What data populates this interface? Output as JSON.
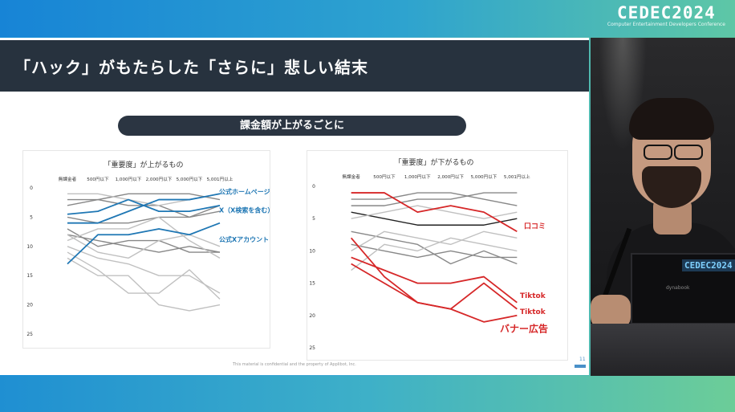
{
  "header": {
    "logo": "CEDEC2024",
    "logo_sub": "Computer Entertainment Developers Conference"
  },
  "slide": {
    "title": "「ハック」がもたらした「さらに」悲しい結末",
    "subtitle": "課金額が上がるごとに",
    "footer": "This material is confidential and the property of Applibot, Inc.",
    "page": "11",
    "colors": {
      "accent_blue": "#1f77b4",
      "accent_red": "#d62728",
      "dark": "#27323e"
    }
  },
  "video": {
    "laptop_logo": "CEDEC2024",
    "laptop_brand": "dynabook"
  },
  "chart_data": [
    {
      "type": "line",
      "title": "「重要度」が上がるもの",
      "categories": [
        "無課金者",
        "500円以下",
        "1,000円以下",
        "2,000円以下",
        "5,000円以下",
        "5,001円以上"
      ],
      "ylim": [
        25,
        0
      ],
      "yticks": [
        0,
        5,
        10,
        15,
        20,
        25
      ],
      "series": [
        {
          "name": "公式ホームページ",
          "color": "#1f77b4",
          "highlight": true,
          "values": [
            6,
            6,
            4,
            2,
            2,
            1
          ]
        },
        {
          "name": "X（X検索を含む）",
          "color": "#1f77b4",
          "highlight": true,
          "values": [
            4.5,
            4,
            2,
            4,
            4,
            3
          ]
        },
        {
          "name": "公式Xアカウント",
          "color": "#1f77b4",
          "highlight": true,
          "values": [
            13,
            8,
            8,
            7,
            8,
            6
          ]
        },
        {
          "name": "",
          "color": "#888888",
          "values": [
            2,
            2,
            1,
            1,
            1,
            2
          ]
        },
        {
          "name": "",
          "color": "#888888",
          "values": [
            3,
            2,
            3,
            3,
            5,
            4
          ]
        },
        {
          "name": "",
          "color": "#888888",
          "values": [
            5,
            6,
            6,
            5,
            5,
            3
          ]
        },
        {
          "name": "",
          "color": "#888888",
          "values": [
            7,
            10,
            9,
            9,
            11,
            11
          ]
        },
        {
          "name": "",
          "color": "#888888",
          "values": [
            8,
            9,
            10,
            11,
            10,
            11
          ]
        },
        {
          "name": "",
          "color": "#c0c0c0",
          "values": [
            1,
            1,
            2,
            3,
            2,
            1
          ]
        },
        {
          "name": "",
          "color": "#c0c0c0",
          "values": [
            9,
            7,
            7,
            5,
            9,
            12
          ]
        },
        {
          "name": "",
          "color": "#c0c0c0",
          "values": [
            10,
            12,
            13,
            15,
            15,
            18
          ]
        },
        {
          "name": "",
          "color": "#c0c0c0",
          "values": [
            11,
            14,
            18,
            18,
            14,
            19
          ]
        },
        {
          "name": "",
          "color": "#c0c0c0",
          "values": [
            12,
            15,
            15,
            20,
            21,
            20
          ]
        },
        {
          "name": "",
          "color": "#c0c0c0",
          "values": [
            8,
            11,
            12,
            9,
            8,
            10
          ]
        }
      ],
      "annotations": [
        "公式ホームページ",
        "X（X検索を含む）",
        "公式Xアカウント"
      ]
    },
    {
      "type": "line",
      "title": "「重要度」が下がるもの",
      "categories": [
        "無課金者",
        "500円以下",
        "1,000円以下",
        "2,000円以下",
        "5,000円以下",
        "5,001円以上"
      ],
      "ylim": [
        25,
        0
      ],
      "yticks": [
        0,
        5,
        10,
        15,
        20,
        25
      ],
      "series": [
        {
          "name": "口コミ",
          "color": "#d62728",
          "highlight": true,
          "values": [
            1,
            1,
            4,
            3,
            4,
            7
          ]
        },
        {
          "name": "Tiktok",
          "color": "#d62728",
          "highlight": true,
          "values": [
            11,
            13,
            15,
            15,
            14,
            18
          ]
        },
        {
          "name": "Tiktok",
          "color": "#d62728",
          "highlight": true,
          "values": [
            12,
            15,
            18,
            19,
            15,
            19
          ]
        },
        {
          "name": "バナー広告",
          "color": "#d62728",
          "highlight": true,
          "values": [
            8,
            14,
            18,
            19,
            21,
            20
          ]
        },
        {
          "name": "",
          "color": "#222222",
          "values": [
            4,
            5,
            6,
            6,
            6,
            5
          ]
        },
        {
          "name": "",
          "color": "#888888",
          "values": [
            2,
            2,
            1,
            1,
            2,
            3
          ]
        },
        {
          "name": "",
          "color": "#888888",
          "values": [
            3,
            3,
            2,
            2,
            1,
            1
          ]
        },
        {
          "name": "",
          "color": "#888888",
          "values": [
            9,
            10,
            11,
            10,
            11,
            11
          ]
        },
        {
          "name": "",
          "color": "#888888",
          "values": [
            7,
            8,
            9,
            12,
            10,
            12
          ]
        },
        {
          "name": "",
          "color": "#c0c0c0",
          "values": [
            5,
            4,
            3,
            4,
            5,
            4
          ]
        },
        {
          "name": "",
          "color": "#c0c0c0",
          "values": [
            10,
            7,
            8,
            9,
            7,
            8
          ]
        },
        {
          "name": "",
          "color": "#c0c0c0",
          "values": [
            13,
            9,
            10,
            8,
            9,
            10
          ]
        }
      ],
      "annotations": [
        "口コミ",
        "Tiktok",
        "Tiktok",
        "バナー広告"
      ]
    }
  ]
}
